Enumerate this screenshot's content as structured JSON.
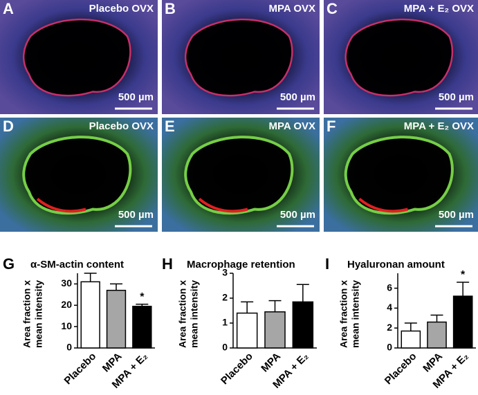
{
  "panels": [
    {
      "letter": "A",
      "label": "Placebo OVX",
      "scale": "500 µm"
    },
    {
      "letter": "B",
      "label": "MPA OVX",
      "scale": "500 µm"
    },
    {
      "letter": "C",
      "label": "MPA + E₂ OVX",
      "scale": "500 µm"
    },
    {
      "letter": "D",
      "label": "Placebo OVX",
      "scale": "500 µm"
    },
    {
      "letter": "E",
      "label": "MPA OVX",
      "scale": "500 µm"
    },
    {
      "letter": "F",
      "label": "MPA + E₂ OVX",
      "scale": "500 µm"
    }
  ],
  "chart_data": [
    {
      "type": "bar",
      "letter": "G",
      "title": "α-SM-actin content",
      "ylabel": [
        "Area fraction x",
        "mean intensity"
      ],
      "categories": [
        "Placebo",
        "MPA",
        "MPA + E₂"
      ],
      "values": [
        31,
        27,
        19.5
      ],
      "errors": [
        4,
        3,
        1
      ],
      "colors": [
        "#ffffff",
        "#a6a6a6",
        "#000000"
      ],
      "star_labels": [
        null,
        null,
        "*"
      ],
      "ylim": [
        0,
        35
      ],
      "yticks": [
        0,
        10,
        20,
        30
      ]
    },
    {
      "type": "bar",
      "letter": "H",
      "title": "Macrophage retention",
      "ylabel": [
        "Area fraction x",
        "mean intensity"
      ],
      "categories": [
        "Placebo",
        "MPA",
        "MPA + E₂"
      ],
      "values": [
        1.4,
        1.45,
        1.85
      ],
      "errors": [
        0.45,
        0.45,
        0.7
      ],
      "colors": [
        "#ffffff",
        "#a6a6a6",
        "#000000"
      ],
      "ylim": [
        0,
        3
      ],
      "yticks": [
        0,
        1,
        2,
        3
      ]
    },
    {
      "type": "bar",
      "letter": "I",
      "title": "Hyaluronan amount",
      "ylabel": [
        "Area fraction x",
        "mean intensity"
      ],
      "categories": [
        "Placebo",
        "MPA",
        "MPA + E₂"
      ],
      "values": [
        1.7,
        2.6,
        5.2
      ],
      "errors": [
        0.8,
        0.7,
        1.4
      ],
      "colors": [
        "#ffffff",
        "#a6a6a6",
        "#000000"
      ],
      "star_labels": [
        null,
        null,
        "*"
      ],
      "ylim": [
        0,
        7.5
      ],
      "yticks": [
        0,
        2,
        4,
        6
      ]
    }
  ]
}
